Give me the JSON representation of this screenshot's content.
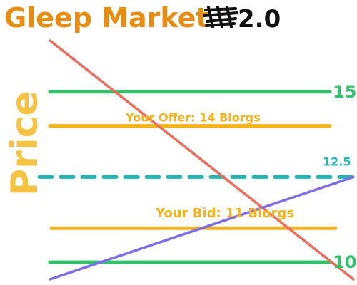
{
  "chart_data": {
    "type": "line",
    "title_text": "Gleep Market",
    "title_version": "2.0",
    "ylabel": "Price",
    "xlabel": "",
    "ylim": [
      9.5,
      16.5
    ],
    "series": [
      {
        "color": "#ef6b5b",
        "points": [
          [
            0,
            16.5
          ],
          [
            1,
            9.5
          ]
        ]
      },
      {
        "color": "#7d6cf0",
        "points": [
          [
            0,
            9.5
          ],
          [
            1,
            12.5
          ]
        ]
      }
    ],
    "hlines": [
      {
        "label": "15",
        "y": 15,
        "color": "#33c26b",
        "style": "solid"
      },
      {
        "label": "Your Offer: 14 Blorgs",
        "y": 14,
        "color": "#f6b21a",
        "style": "solid"
      },
      {
        "label": "12.5",
        "y": 12.5,
        "color": "#23b5b5",
        "style": "dashed"
      },
      {
        "label": "Your Bid: 11 Blorgs",
        "y": 11,
        "color": "#f6b21a",
        "style": "solid"
      },
      {
        "label": "10",
        "y": 10,
        "color": "#33c26b",
        "style": "solid"
      }
    ],
    "colors": {
      "title": "#e88c12",
      "ylabel": "#f5c242",
      "version": "#111111",
      "offer_bid_text": "#f6b21a",
      "green": "#33c26b",
      "teal": "#23b5b5"
    }
  }
}
